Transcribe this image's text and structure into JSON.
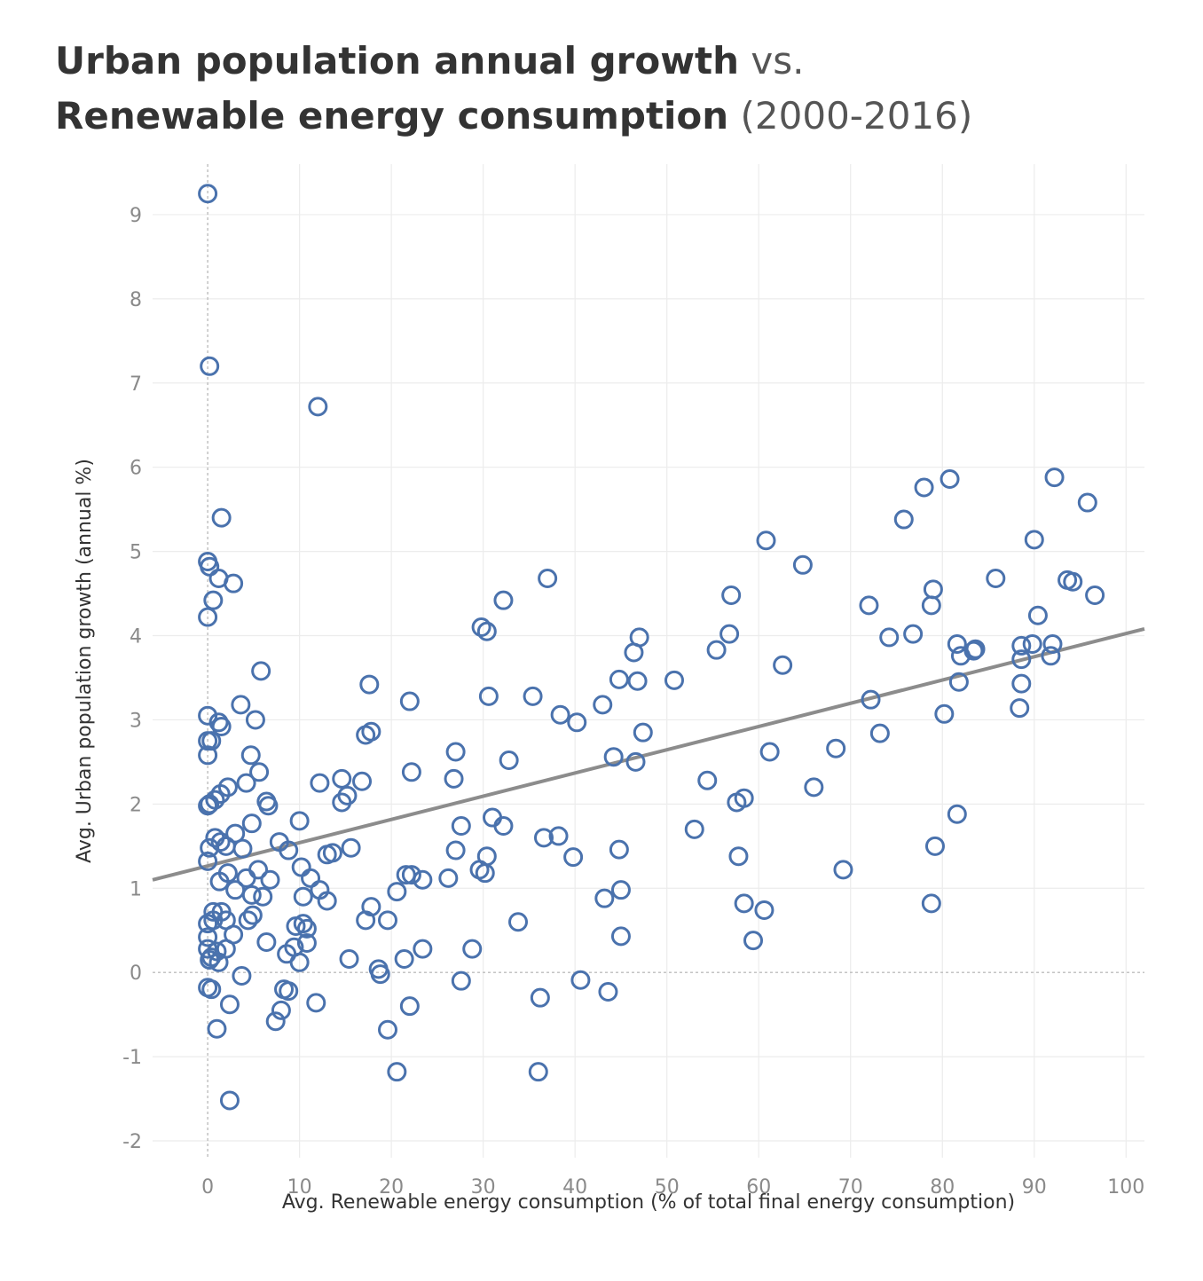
{
  "title": {
    "line1_strong": "Urban population annual growth",
    "line1_light": " vs.",
    "line2_strong": "Renewable energy consumption",
    "line2_light": " (2000-2016)"
  },
  "colors": {
    "marker": "#4a72ad",
    "trendline": "#8c8c8c",
    "grid": "#ececec",
    "zero_line": "#bdbdbd",
    "tick_text": "#8a8a8a"
  },
  "chart_data": {
    "type": "scatter",
    "xlabel": "Avg. Renewable energy consumption (% of total final energy consumption)",
    "ylabel": "Avg. Urban population growth (annual %)",
    "xlim": [
      -6,
      102
    ],
    "ylim": [
      -2.2,
      9.6
    ],
    "x_ticks": [
      0,
      10,
      20,
      30,
      40,
      50,
      60,
      70,
      80,
      90,
      100
    ],
    "y_ticks": [
      -2,
      -1,
      0,
      1,
      2,
      3,
      4,
      5,
      6,
      7,
      8,
      9
    ],
    "grid": true,
    "marker": "hollow-circle",
    "trendline": {
      "x": [
        -6,
        102
      ],
      "y": [
        1.1,
        4.08
      ]
    },
    "points": [
      [
        0.0,
        9.25
      ],
      [
        0.2,
        7.2
      ],
      [
        12.0,
        6.72
      ],
      [
        1.5,
        5.4
      ],
      [
        0.0,
        4.88
      ],
      [
        0.2,
        4.82
      ],
      [
        1.2,
        4.68
      ],
      [
        2.8,
        4.62
      ],
      [
        0.6,
        4.42
      ],
      [
        0.0,
        4.22
      ],
      [
        5.8,
        3.58
      ],
      [
        3.6,
        3.18
      ],
      [
        0.0,
        3.05
      ],
      [
        1.2,
        2.97
      ],
      [
        1.5,
        2.92
      ],
      [
        5.2,
        3.0
      ],
      [
        0.0,
        2.75
      ],
      [
        0.4,
        2.75
      ],
      [
        0.0,
        2.58
      ],
      [
        4.7,
        2.58
      ],
      [
        5.6,
        2.38
      ],
      [
        4.2,
        2.25
      ],
      [
        2.2,
        2.2
      ],
      [
        1.4,
        2.12
      ],
      [
        0.8,
        2.05
      ],
      [
        0.2,
        2.0
      ],
      [
        0.0,
        1.98
      ],
      [
        6.4,
        2.03
      ],
      [
        6.6,
        1.98
      ],
      [
        4.8,
        1.77
      ],
      [
        3.0,
        1.65
      ],
      [
        0.8,
        1.6
      ],
      [
        1.4,
        1.55
      ],
      [
        2.0,
        1.5
      ],
      [
        3.8,
        1.47
      ],
      [
        0.2,
        1.48
      ],
      [
        0.0,
        1.32
      ],
      [
        5.5,
        1.22
      ],
      [
        2.2,
        1.18
      ],
      [
        4.2,
        1.12
      ],
      [
        6.8,
        1.1
      ],
      [
        1.3,
        1.08
      ],
      [
        3.0,
        0.98
      ],
      [
        4.8,
        0.92
      ],
      [
        6.0,
        0.9
      ],
      [
        4.9,
        0.68
      ],
      [
        4.4,
        0.62
      ],
      [
        0.6,
        0.72
      ],
      [
        1.5,
        0.72
      ],
      [
        0.6,
        0.62
      ],
      [
        2.0,
        0.62
      ],
      [
        0.0,
        0.58
      ],
      [
        2.8,
        0.45
      ],
      [
        0.0,
        0.42
      ],
      [
        0.0,
        0.28
      ],
      [
        1.0,
        0.25
      ],
      [
        2.0,
        0.28
      ],
      [
        0.4,
        0.18
      ],
      [
        1.2,
        0.12
      ],
      [
        0.2,
        0.15
      ],
      [
        0.0,
        -0.18
      ],
      [
        0.4,
        -0.2
      ],
      [
        3.7,
        -0.04
      ],
      [
        2.4,
        -0.38
      ],
      [
        1.0,
        -0.67
      ],
      [
        2.4,
        -1.52
      ],
      [
        6.4,
        0.36
      ],
      [
        7.8,
        1.55
      ],
      [
        8.8,
        1.45
      ],
      [
        10.0,
        1.8
      ],
      [
        10.2,
        1.25
      ],
      [
        11.2,
        1.12
      ],
      [
        12.2,
        0.98
      ],
      [
        10.4,
        0.9
      ],
      [
        13.0,
        0.85
      ],
      [
        9.6,
        0.55
      ],
      [
        10.4,
        0.58
      ],
      [
        10.8,
        0.52
      ],
      [
        10.8,
        0.35
      ],
      [
        9.4,
        0.3
      ],
      [
        8.6,
        0.22
      ],
      [
        10.0,
        0.12
      ],
      [
        8.3,
        -0.2
      ],
      [
        8.8,
        -0.22
      ],
      [
        8.0,
        -0.45
      ],
      [
        7.4,
        -0.58
      ],
      [
        11.8,
        -0.36
      ],
      [
        12.2,
        2.25
      ],
      [
        13.0,
        1.4
      ],
      [
        13.6,
        1.42
      ],
      [
        14.6,
        2.3
      ],
      [
        14.6,
        2.02
      ],
      [
        15.2,
        2.1
      ],
      [
        15.6,
        1.48
      ],
      [
        16.8,
        2.27
      ],
      [
        17.2,
        2.82
      ],
      [
        17.8,
        2.86
      ],
      [
        17.6,
        3.42
      ],
      [
        17.2,
        0.62
      ],
      [
        17.8,
        0.78
      ],
      [
        19.6,
        0.62
      ],
      [
        15.4,
        0.16
      ],
      [
        18.6,
        0.04
      ],
      [
        18.8,
        -0.02
      ],
      [
        19.6,
        -0.68
      ],
      [
        20.6,
        -1.18
      ],
      [
        20.6,
        0.96
      ],
      [
        21.6,
        1.16
      ],
      [
        22.2,
        1.16
      ],
      [
        23.4,
        1.1
      ],
      [
        22.0,
        3.22
      ],
      [
        22.2,
        2.38
      ],
      [
        21.4,
        0.16
      ],
      [
        23.4,
        0.28
      ],
      [
        22.0,
        -0.4
      ],
      [
        26.8,
        2.3
      ],
      [
        27.0,
        2.62
      ],
      [
        27.6,
        1.74
      ],
      [
        27.0,
        1.45
      ],
      [
        26.2,
        1.12
      ],
      [
        28.8,
        0.28
      ],
      [
        27.6,
        -0.1
      ],
      [
        29.8,
        4.1
      ],
      [
        30.4,
        4.05
      ],
      [
        30.6,
        3.28
      ],
      [
        32.2,
        4.42
      ],
      [
        31.0,
        1.84
      ],
      [
        32.2,
        1.74
      ],
      [
        32.8,
        2.52
      ],
      [
        30.4,
        1.38
      ],
      [
        29.6,
        1.22
      ],
      [
        30.2,
        1.18
      ],
      [
        33.8,
        0.6
      ],
      [
        35.4,
        3.28
      ],
      [
        37.0,
        4.68
      ],
      [
        38.4,
        3.06
      ],
      [
        40.2,
        2.97
      ],
      [
        36.6,
        1.6
      ],
      [
        38.2,
        1.62
      ],
      [
        39.8,
        1.37
      ],
      [
        36.2,
        -0.3
      ],
      [
        36.0,
        -1.18
      ],
      [
        40.6,
        -0.09
      ],
      [
        43.0,
        3.18
      ],
      [
        44.8,
        3.48
      ],
      [
        46.4,
        3.8
      ],
      [
        47.0,
        3.98
      ],
      [
        46.8,
        3.46
      ],
      [
        44.2,
        2.56
      ],
      [
        46.6,
        2.5
      ],
      [
        47.4,
        2.85
      ],
      [
        44.8,
        1.46
      ],
      [
        45.0,
        0.98
      ],
      [
        43.2,
        0.88
      ],
      [
        45.0,
        0.43
      ],
      [
        43.6,
        -0.23
      ],
      [
        50.8,
        3.47
      ],
      [
        55.4,
        3.83
      ],
      [
        56.8,
        4.02
      ],
      [
        57.0,
        4.48
      ],
      [
        54.4,
        2.28
      ],
      [
        53.0,
        1.7
      ],
      [
        57.6,
        2.02
      ],
      [
        58.4,
        2.07
      ],
      [
        57.8,
        1.38
      ],
      [
        58.4,
        0.82
      ],
      [
        60.6,
        0.74
      ],
      [
        59.4,
        0.38
      ],
      [
        60.8,
        5.13
      ],
      [
        64.8,
        4.84
      ],
      [
        62.6,
        3.65
      ],
      [
        61.2,
        2.62
      ],
      [
        66.0,
        2.2
      ],
      [
        68.4,
        2.66
      ],
      [
        69.2,
        1.22
      ],
      [
        72.0,
        4.36
      ],
      [
        74.2,
        3.98
      ],
      [
        72.2,
        3.24
      ],
      [
        73.2,
        2.84
      ],
      [
        75.8,
        5.38
      ],
      [
        78.0,
        5.76
      ],
      [
        80.8,
        5.86
      ],
      [
        76.8,
        4.02
      ],
      [
        79.0,
        4.55
      ],
      [
        78.8,
        4.36
      ],
      [
        81.6,
        3.9
      ],
      [
        82.0,
        3.76
      ],
      [
        83.4,
        3.82
      ],
      [
        83.6,
        3.84
      ],
      [
        81.8,
        3.45
      ],
      [
        80.2,
        3.07
      ],
      [
        81.6,
        1.88
      ],
      [
        79.2,
        1.5
      ],
      [
        78.8,
        0.82
      ],
      [
        85.8,
        4.68
      ],
      [
        88.6,
        3.88
      ],
      [
        88.6,
        3.72
      ],
      [
        89.8,
        3.9
      ],
      [
        92.0,
        3.9
      ],
      [
        91.8,
        3.76
      ],
      [
        88.4,
        3.14
      ],
      [
        88.6,
        3.43
      ],
      [
        92.2,
        5.88
      ],
      [
        90.0,
        5.14
      ],
      [
        90.4,
        4.24
      ],
      [
        93.6,
        4.66
      ],
      [
        94.2,
        4.64
      ],
      [
        95.8,
        5.58
      ],
      [
        96.6,
        4.48
      ]
    ]
  }
}
